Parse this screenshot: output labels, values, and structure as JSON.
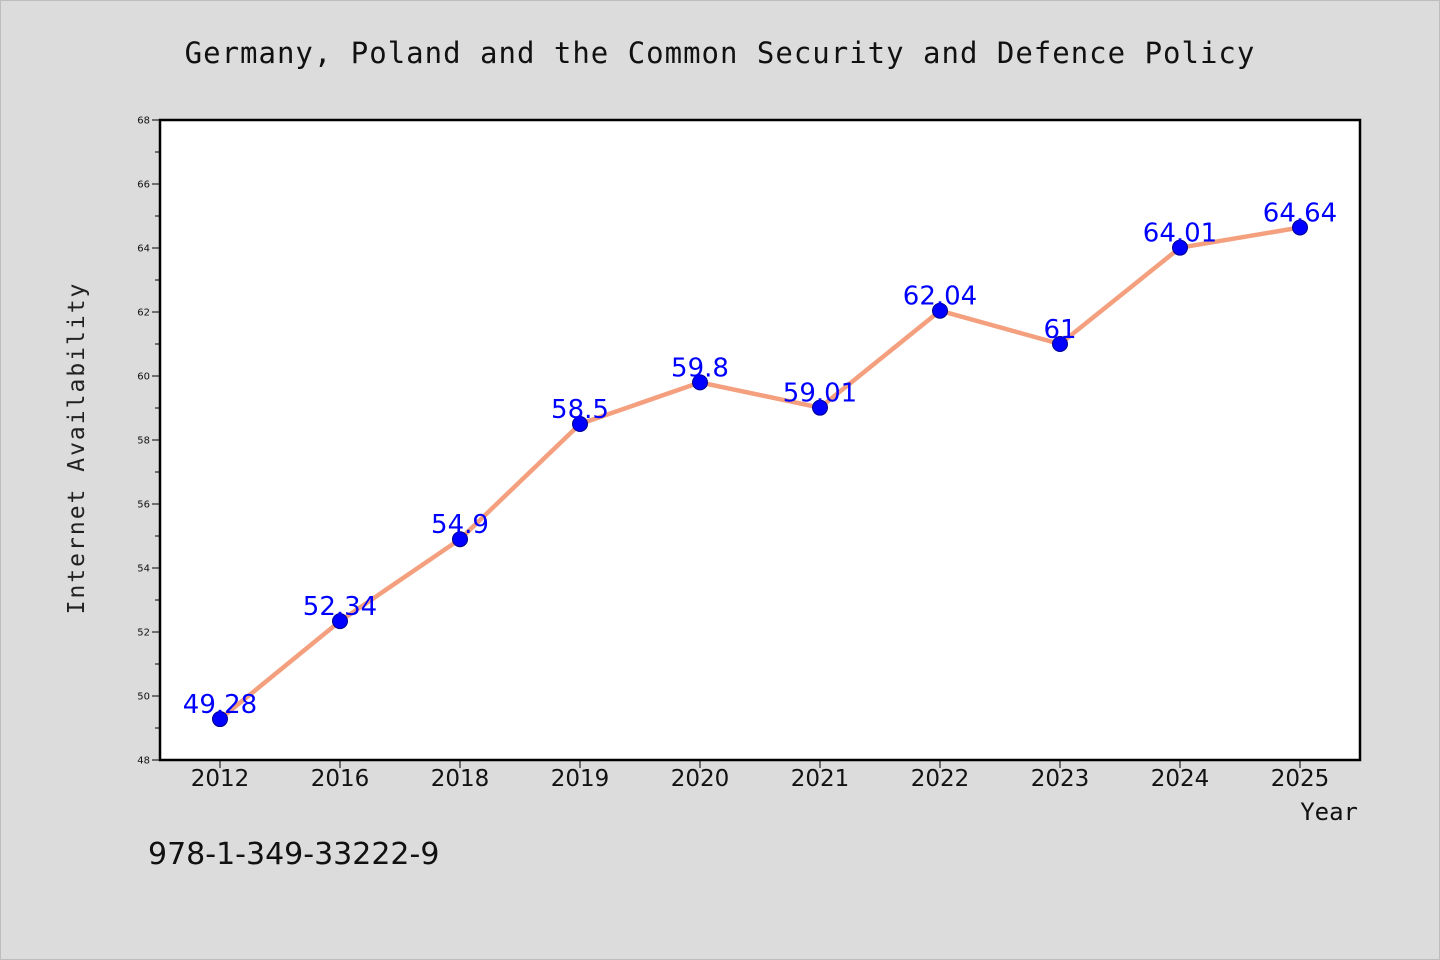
{
  "chart_data": {
    "type": "line",
    "title": "Germany, Poland and the Common Security and Defence Policy",
    "xlabel": "Year",
    "ylabel": "Internet Availability",
    "categories": [
      "2012",
      "2016",
      "2018",
      "2019",
      "2020",
      "2021",
      "2022",
      "2023",
      "2024",
      "2025"
    ],
    "series": [
      {
        "values": [
          49.28,
          52.34,
          54.9,
          58.5,
          59.8,
          59.01,
          62.04,
          61,
          64.01,
          64.64
        ],
        "data_labels": [
          "49.28",
          "52.34",
          "54.9",
          "58.5",
          "59.8",
          "59.01",
          "62.04",
          "61",
          "64.01",
          "64.64"
        ],
        "line_color": "#f4a07e",
        "marker_color": "#0000ff"
      }
    ],
    "ylim": [
      48,
      68
    ],
    "yticks": [
      "48",
      "50",
      "52",
      "54",
      "56",
      "58",
      "60",
      "62",
      "64",
      "66",
      "68"
    ],
    "grid": false,
    "legend": "none",
    "annotation": "978-1-349-33222-9",
    "label_color": "#0000ff",
    "background_color": "#dcdcdc",
    "plot_background_color": "#ffffff"
  }
}
